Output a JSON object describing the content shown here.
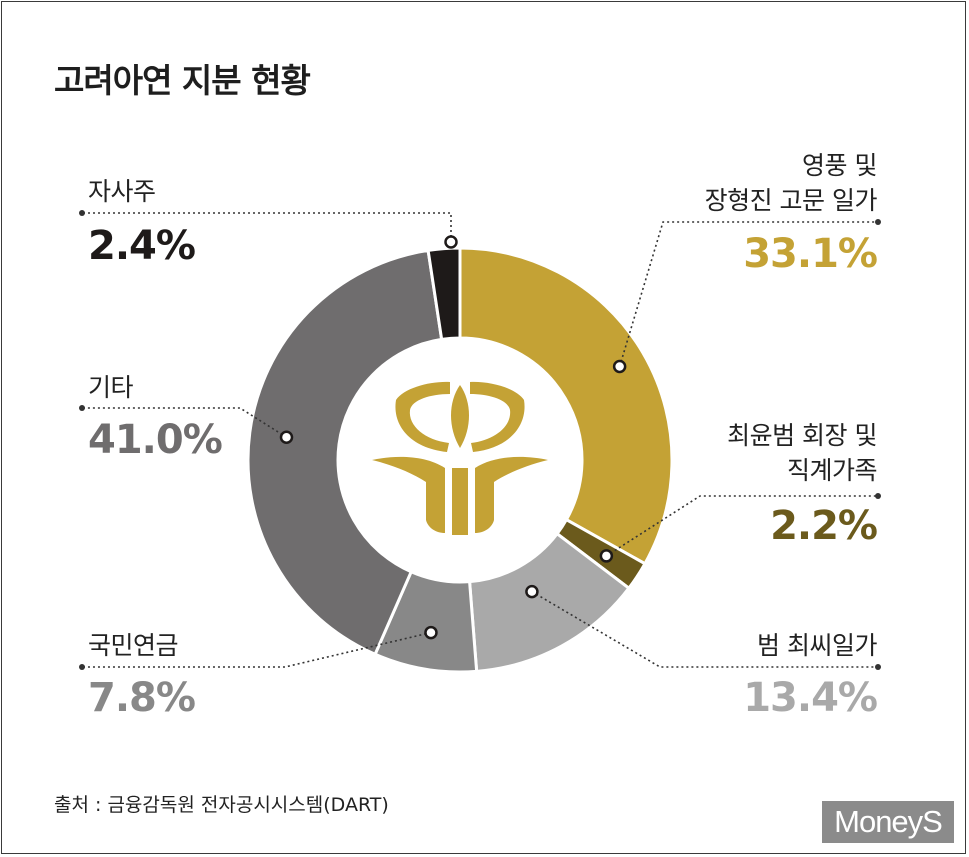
{
  "title": "고려아연 지분 현황",
  "source": "출처 : 금융감독원 전자공시시스템(DART)",
  "brand": "MoneyS",
  "colors": {
    "gold": "#c4a235",
    "dark_gold": "#6b5a1c",
    "black": "#1e1a19",
    "dark_gray": "#6f6d6e",
    "mid_gray": "#888888",
    "light_gray": "#a9a9a9"
  },
  "labels": {
    "treasury": {
      "name": "자사주",
      "pct": "2.4%"
    },
    "young_poong_line1": "영풍 및",
    "young_poong_line2": "장형진 고문 일가",
    "young_poong_pct": "33.1%",
    "choi_chairman_line1": "최윤범 회장 및",
    "choi_chairman_line2": "직계가족",
    "choi_chairman_pct": "2.2%",
    "choi_family": {
      "name": "범 최씨일가",
      "pct": "13.4%"
    },
    "nps": {
      "name": "국민연금",
      "pct": "7.8%"
    },
    "other": {
      "name": "기타",
      "pct": "41.0%"
    }
  },
  "chart_data": {
    "type": "pie",
    "donut": true,
    "start": "top, clockwise",
    "slices": [
      {
        "label": "영풍 및 장형진 고문 일가",
        "value": 33.1,
        "color": "#c4a235"
      },
      {
        "label": "최윤범 회장 및 직계가족",
        "value": 2.2,
        "color": "#6b5a1c"
      },
      {
        "label": "범 최씨일가",
        "value": 13.4,
        "color": "#a9a9a9"
      },
      {
        "label": "국민연금",
        "value": 7.8,
        "color": "#888888"
      },
      {
        "label": "기타",
        "value": 41.0,
        "color": "#6f6d6e"
      },
      {
        "label": "자사주",
        "value": 2.4,
        "color": "#1e1a19"
      }
    ]
  }
}
